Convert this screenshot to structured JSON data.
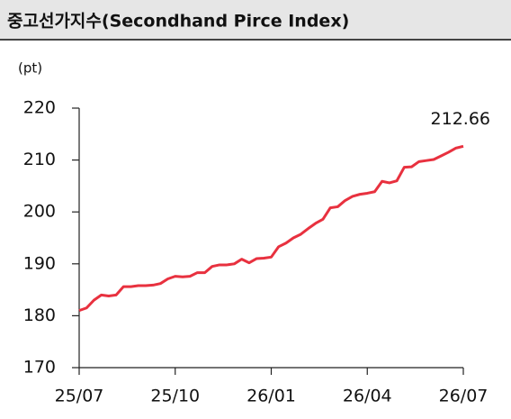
{
  "chart_data": {
    "type": "line",
    "title": "중고선가지수(Secondhand Pirce Index)",
    "y_label": "(pt)",
    "categories": [
      "25/07",
      null,
      null,
      null,
      null,
      null,
      null,
      null,
      null,
      null,
      null,
      null,
      null,
      "25/10",
      null,
      null,
      null,
      null,
      null,
      null,
      null,
      null,
      null,
      null,
      null,
      null,
      "26/01",
      null,
      null,
      null,
      null,
      null,
      null,
      null,
      null,
      null,
      null,
      null,
      null,
      "26/04",
      null,
      null,
      null,
      null,
      null,
      null,
      null,
      null,
      null,
      null,
      null,
      null,
      "26/07"
    ],
    "series": [
      {
        "name": "Secondhand Pirce Index",
        "color": "#e8313f",
        "values": [
          181.0,
          181.5,
          183.0,
          184.0,
          183.8,
          184.0,
          185.6,
          185.6,
          185.8,
          185.8,
          185.9,
          186.2,
          187.1,
          187.6,
          187.5,
          187.6,
          188.3,
          188.3,
          189.5,
          189.8,
          189.8,
          190.0,
          190.9,
          190.2,
          191.0,
          191.1,
          191.3,
          193.3,
          194.0,
          195.0,
          195.7,
          196.8,
          197.8,
          198.6,
          200.8,
          201.0,
          202.2,
          203.0,
          203.4,
          203.6,
          203.9,
          205.9,
          205.6,
          206.0,
          208.6,
          208.7,
          209.7,
          209.9,
          210.1,
          210.8,
          211.5,
          212.3,
          212.66
        ]
      }
    ],
    "ylim": [
      170,
      220
    ],
    "yticks": [
      170,
      180,
      190,
      200,
      210,
      220
    ],
    "grid": false
  }
}
